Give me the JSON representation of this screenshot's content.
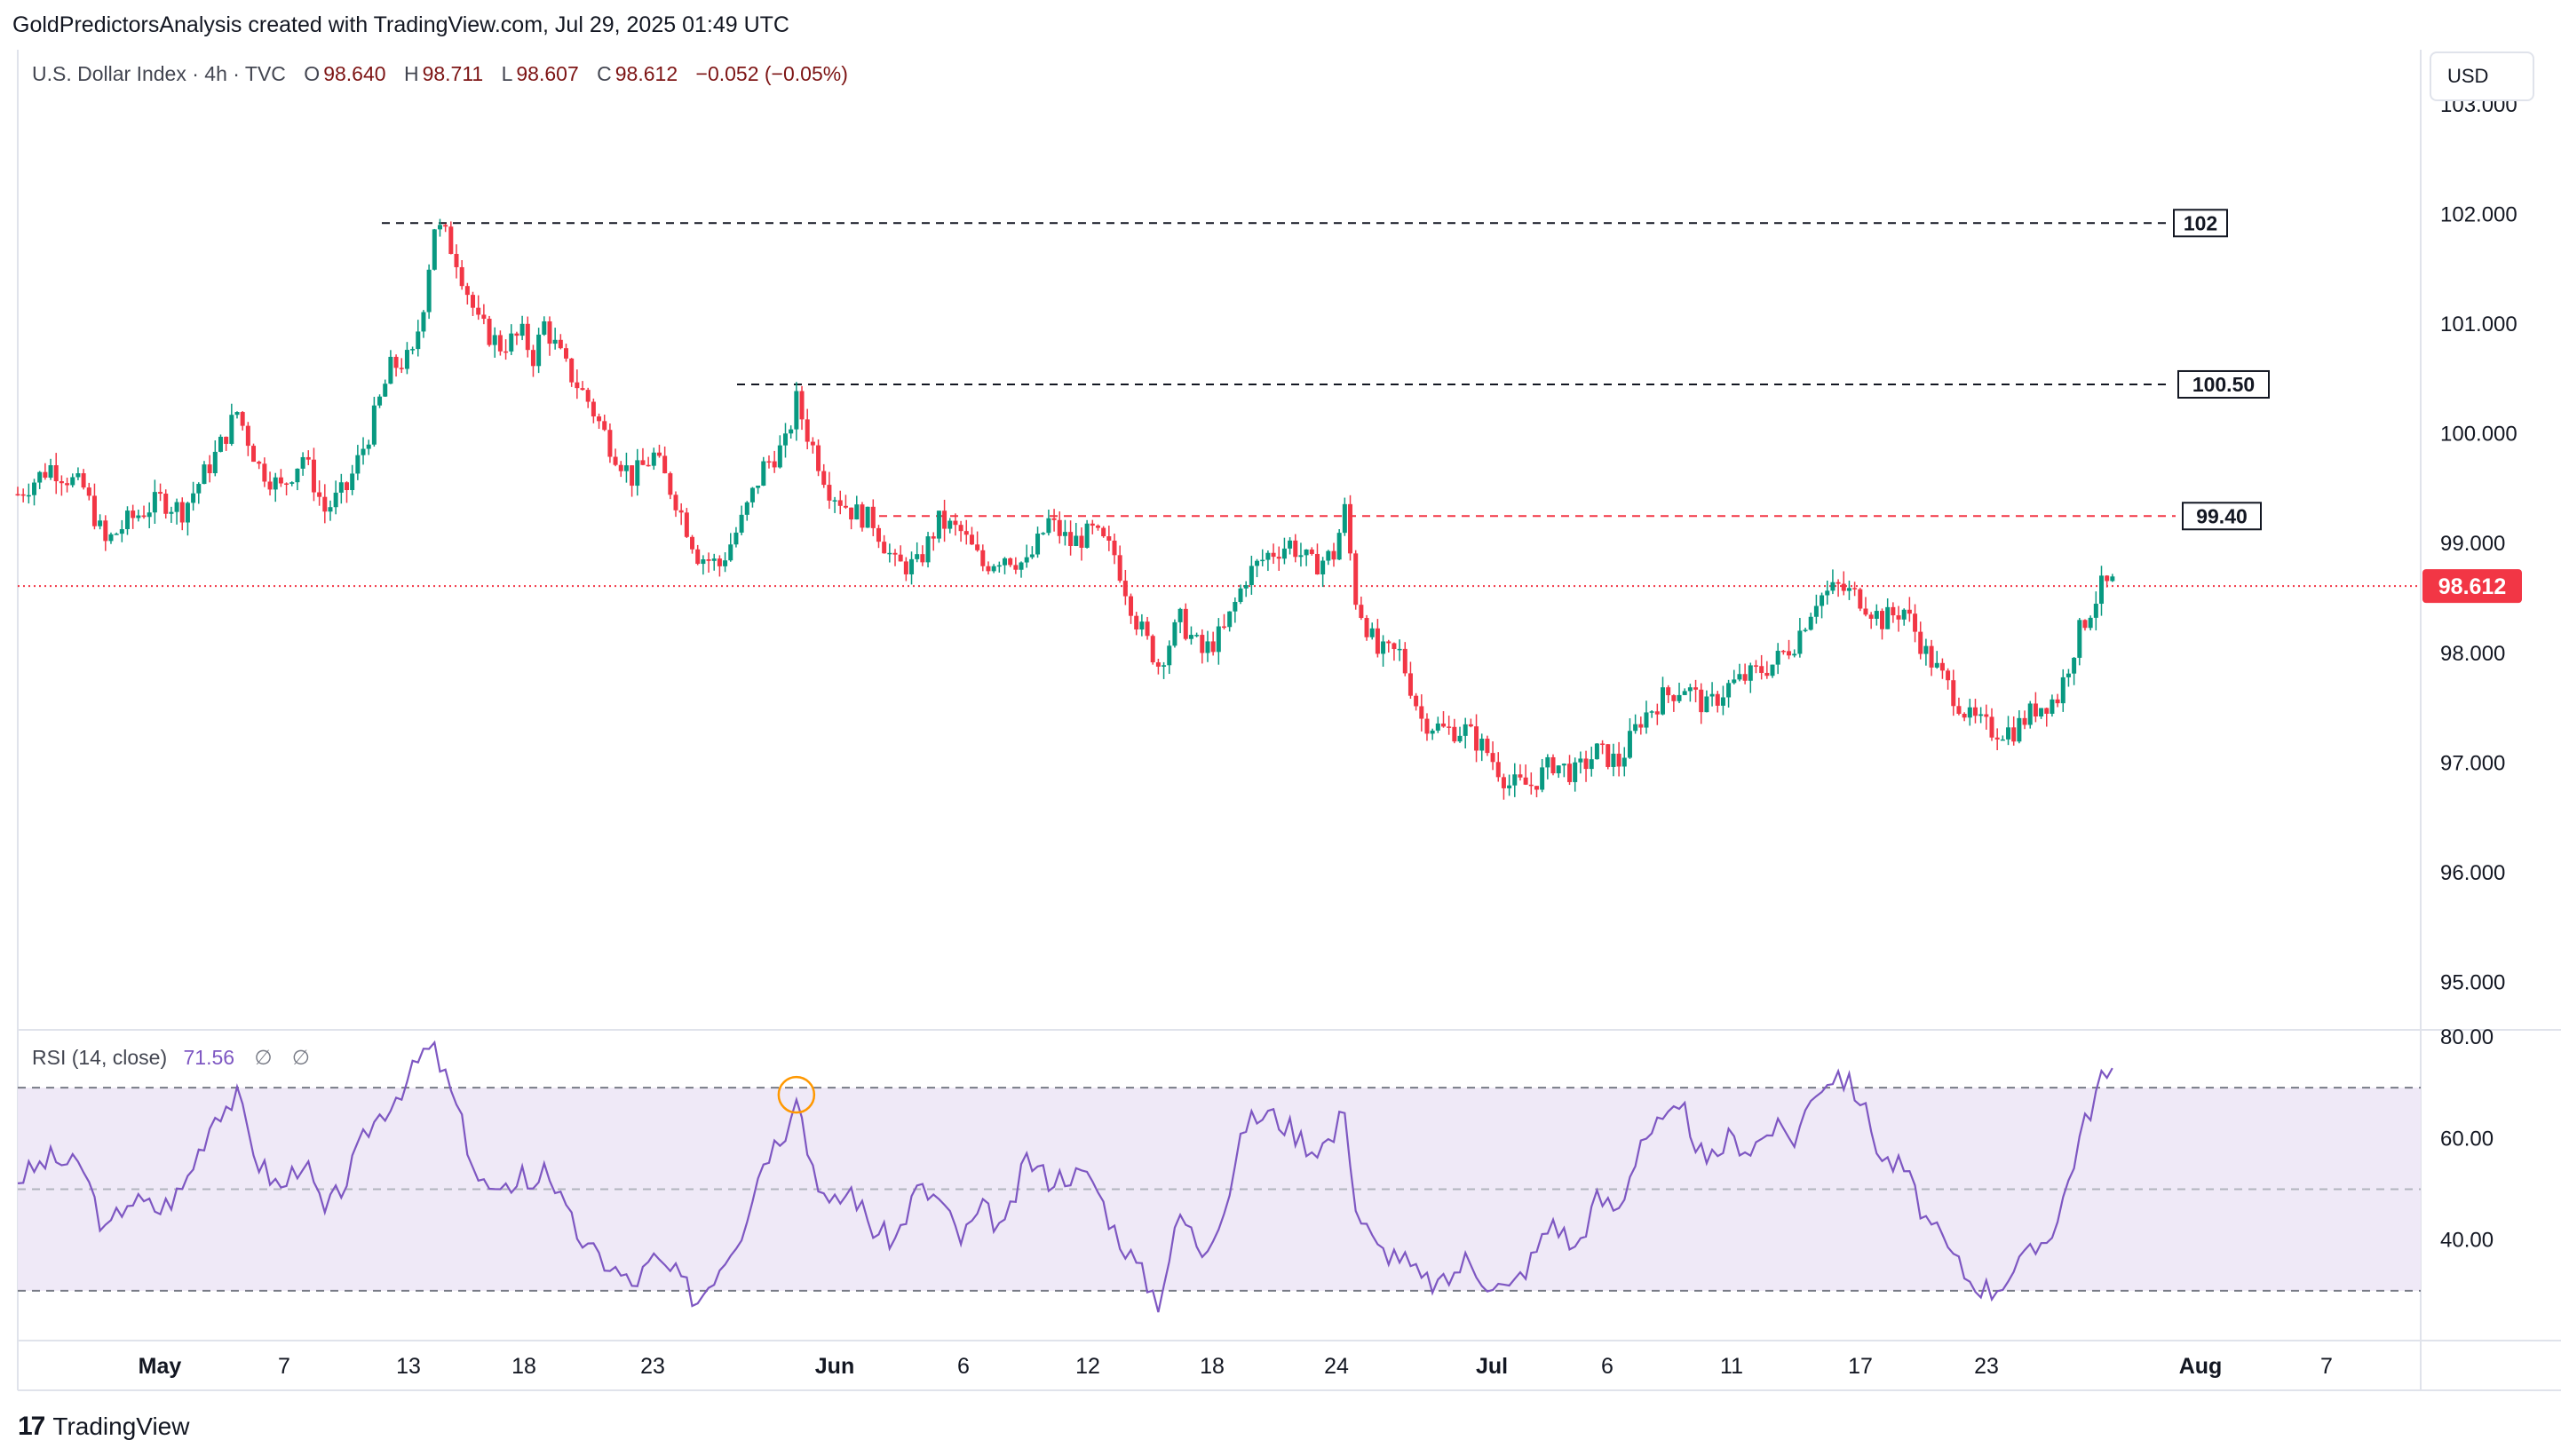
{
  "header": {
    "attribution": "GoldPredictorsAnalysis created with TradingView.com, Jul 29, 2025 01:49 UTC"
  },
  "legend": {
    "symbol": "U.S. Dollar Index · 4h · TVC",
    "open_label": "O",
    "open": "98.640",
    "high_label": "H",
    "high": "98.711",
    "low_label": "L",
    "low": "98.607",
    "close_label": "C",
    "close": "98.612",
    "change": "−0.052 (−0.05%)"
  },
  "rsi_legend": {
    "name": "RSI (14, close)",
    "value": "71.56",
    "na1": "∅",
    "na2": "∅"
  },
  "currency_button": "USD",
  "brand": {
    "logo": "17",
    "name": "TradingView"
  },
  "colors": {
    "up": "#089981",
    "down": "#f23645",
    "rsi_line": "#7e57c2",
    "rsi_band": "#ede7f6",
    "last_price": "#f23645"
  },
  "chart_data": {
    "type": "candlestick",
    "price_axis": {
      "min": 95,
      "max": 103,
      "ticks": [
        "95.000",
        "96.000",
        "97.000",
        "98.000",
        "99.000",
        "100.000",
        "101.000",
        "102.000",
        "103.000"
      ]
    },
    "time_axis": {
      "ticks": [
        "May",
        "7",
        "13",
        "18",
        "23",
        "Jun",
        "6",
        "12",
        "18",
        "24",
        "Jul",
        "6",
        "11",
        "17",
        "23",
        "Aug",
        "7"
      ]
    },
    "last_price": "98.612",
    "levels": [
      {
        "label": "102",
        "value": 101.92,
        "color": "#131722"
      },
      {
        "label": "100.50",
        "value": 100.45,
        "color": "#131722"
      },
      {
        "label": "99.40",
        "value": 99.25,
        "color": "#f23645"
      }
    ],
    "close_path": [
      [
        0,
        99.45
      ],
      [
        3,
        99.7
      ],
      [
        6,
        99.5
      ],
      [
        8,
        99.0
      ],
      [
        10,
        99.2
      ],
      [
        13,
        99.4
      ],
      [
        15,
        99.3
      ],
      [
        18,
        99.8
      ],
      [
        20,
        100.2
      ],
      [
        22,
        99.7
      ],
      [
        24,
        99.5
      ],
      [
        26,
        99.8
      ],
      [
        28,
        99.3
      ],
      [
        30,
        99.5
      ],
      [
        32,
        100.0
      ],
      [
        34,
        100.6
      ],
      [
        36,
        100.7
      ],
      [
        37,
        101.2
      ],
      [
        38,
        101.9
      ],
      [
        39,
        101.8
      ],
      [
        40,
        101.6
      ],
      [
        42,
        101.0
      ],
      [
        44,
        100.8
      ],
      [
        46,
        100.9
      ],
      [
        47,
        100.7
      ],
      [
        48,
        101.0
      ],
      [
        50,
        100.6
      ],
      [
        52,
        100.3
      ],
      [
        54,
        99.9
      ],
      [
        56,
        99.6
      ],
      [
        58,
        99.8
      ],
      [
        60,
        99.4
      ],
      [
        62,
        98.9
      ],
      [
        64,
        98.8
      ],
      [
        66,
        99.2
      ],
      [
        68,
        99.7
      ],
      [
        70,
        99.9
      ],
      [
        71,
        100.3
      ],
      [
        72,
        100.0
      ],
      [
        74,
        99.5
      ],
      [
        76,
        99.3
      ],
      [
        78,
        99.2
      ],
      [
        80,
        98.8
      ],
      [
        82,
        98.8
      ],
      [
        84,
        99.2
      ],
      [
        86,
        99.1
      ],
      [
        88,
        98.8
      ],
      [
        90,
        98.9
      ],
      [
        92,
        98.8
      ],
      [
        94,
        99.2
      ],
      [
        96,
        99.0
      ],
      [
        98,
        99.1
      ],
      [
        100,
        98.9
      ],
      [
        102,
        98.3
      ],
      [
        104,
        97.9
      ],
      [
        106,
        98.3
      ],
      [
        108,
        98.0
      ],
      [
        110,
        98.2
      ],
      [
        112,
        98.7
      ],
      [
        114,
        98.9
      ],
      [
        116,
        99.0
      ],
      [
        118,
        98.8
      ],
      [
        120,
        98.9
      ],
      [
        121,
        99.3
      ],
      [
        122,
        98.5
      ],
      [
        124,
        98.0
      ],
      [
        126,
        98.0
      ],
      [
        128,
        97.4
      ],
      [
        130,
        97.3
      ],
      [
        132,
        97.3
      ],
      [
        134,
        97.1
      ],
      [
        136,
        96.8
      ],
      [
        138,
        96.8
      ],
      [
        140,
        97.0
      ],
      [
        142,
        96.9
      ],
      [
        144,
        97.1
      ],
      [
        146,
        97.0
      ],
      [
        148,
        97.4
      ],
      [
        150,
        97.6
      ],
      [
        152,
        97.7
      ],
      [
        154,
        97.5
      ],
      [
        156,
        97.7
      ],
      [
        158,
        97.8
      ],
      [
        160,
        97.9
      ],
      [
        162,
        98.1
      ],
      [
        164,
        98.5
      ],
      [
        166,
        98.6
      ],
      [
        168,
        98.5
      ],
      [
        170,
        98.3
      ],
      [
        172,
        98.4
      ],
      [
        174,
        98.0
      ],
      [
        176,
        97.7
      ],
      [
        178,
        97.4
      ],
      [
        180,
        97.3
      ],
      [
        182,
        97.3
      ],
      [
        184,
        97.5
      ],
      [
        186,
        97.6
      ],
      [
        188,
        98.2
      ],
      [
        190,
        98.6
      ],
      [
        191,
        98.63
      ]
    ],
    "rsi": {
      "range": [
        20,
        80
      ],
      "levels": [
        70,
        50,
        30
      ],
      "ticks": [
        "40.00",
        "60.00",
        "80.00"
      ],
      "path": [
        [
          0,
          52
        ],
        [
          3,
          56
        ],
        [
          6,
          54
        ],
        [
          8,
          41
        ],
        [
          10,
          48
        ],
        [
          13,
          46
        ],
        [
          15,
          50
        ],
        [
          18,
          65
        ],
        [
          20,
          68
        ],
        [
          22,
          55
        ],
        [
          24,
          50
        ],
        [
          26,
          56
        ],
        [
          28,
          45
        ],
        [
          30,
          52
        ],
        [
          32,
          62
        ],
        [
          34,
          67
        ],
        [
          36,
          73
        ],
        [
          37,
          77
        ],
        [
          38,
          77
        ],
        [
          39,
          72
        ],
        [
          40,
          66
        ],
        [
          42,
          52
        ],
        [
          44,
          48
        ],
        [
          46,
          54
        ],
        [
          47,
          49
        ],
        [
          48,
          56
        ],
        [
          50,
          45
        ],
        [
          52,
          38
        ],
        [
          54,
          35
        ],
        [
          56,
          31
        ],
        [
          58,
          36
        ],
        [
          60,
          33
        ],
        [
          62,
          28
        ],
        [
          64,
          35
        ],
        [
          66,
          42
        ],
        [
          68,
          56
        ],
        [
          70,
          62
        ],
        [
          71,
          70
        ],
        [
          72,
          58
        ],
        [
          74,
          46
        ],
        [
          76,
          50
        ],
        [
          78,
          42
        ],
        [
          80,
          40
        ],
        [
          82,
          50
        ],
        [
          84,
          48
        ],
        [
          86,
          40
        ],
        [
          88,
          46
        ],
        [
          90,
          42
        ],
        [
          92,
          56
        ],
        [
          94,
          52
        ],
        [
          96,
          53
        ],
        [
          98,
          52
        ],
        [
          100,
          42
        ],
        [
          102,
          35
        ],
        [
          104,
          28
        ],
        [
          106,
          45
        ],
        [
          108,
          38
        ],
        [
          110,
          46
        ],
        [
          112,
          63
        ],
        [
          114,
          65
        ],
        [
          116,
          62
        ],
        [
          118,
          58
        ],
        [
          120,
          60
        ],
        [
          121,
          67
        ],
        [
          122,
          46
        ],
        [
          124,
          38
        ],
        [
          126,
          37
        ],
        [
          128,
          32
        ],
        [
          130,
          31
        ],
        [
          132,
          36
        ],
        [
          134,
          32
        ],
        [
          136,
          30
        ],
        [
          138,
          36
        ],
        [
          140,
          44
        ],
        [
          142,
          38
        ],
        [
          144,
          48
        ],
        [
          146,
          46
        ],
        [
          148,
          60
        ],
        [
          150,
          63
        ],
        [
          152,
          65
        ],
        [
          154,
          54
        ],
        [
          156,
          60
        ],
        [
          158,
          58
        ],
        [
          160,
          62
        ],
        [
          162,
          60
        ],
        [
          164,
          70
        ],
        [
          166,
          73
        ],
        [
          168,
          68
        ],
        [
          170,
          56
        ],
        [
          172,
          54
        ],
        [
          174,
          44
        ],
        [
          176,
          38
        ],
        [
          178,
          32
        ],
        [
          180,
          30
        ],
        [
          182,
          34
        ],
        [
          184,
          38
        ],
        [
          186,
          44
        ],
        [
          188,
          60
        ],
        [
          190,
          72
        ],
        [
          191,
          71.56
        ]
      ]
    }
  }
}
